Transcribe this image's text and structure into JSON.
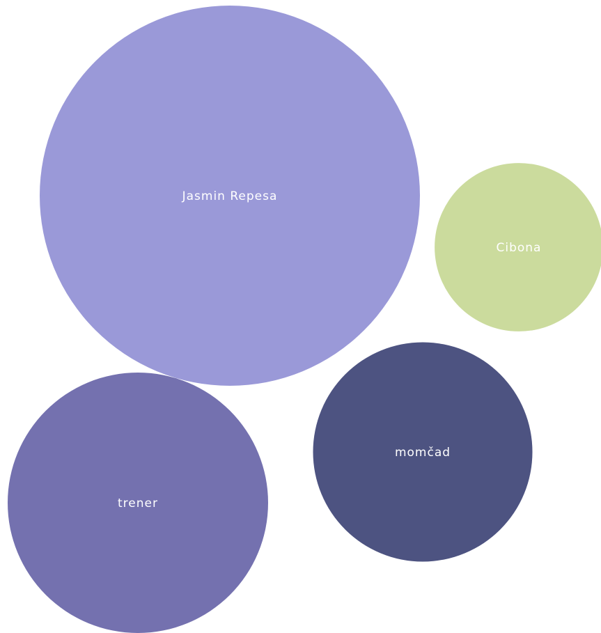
{
  "chart_data": {
    "type": "bubble",
    "title": "",
    "series": [
      {
        "label": "Jasmin Repesa",
        "value": 100,
        "color": "#9a99d8"
      },
      {
        "label": "Cibona",
        "value": 19.6,
        "color": "#cbdb9d"
      },
      {
        "label": "trener",
        "value": 46.9,
        "color": "#7471af"
      },
      {
        "label": "momčad",
        "value": 33.3,
        "color": "#4d5381"
      }
    ]
  }
}
